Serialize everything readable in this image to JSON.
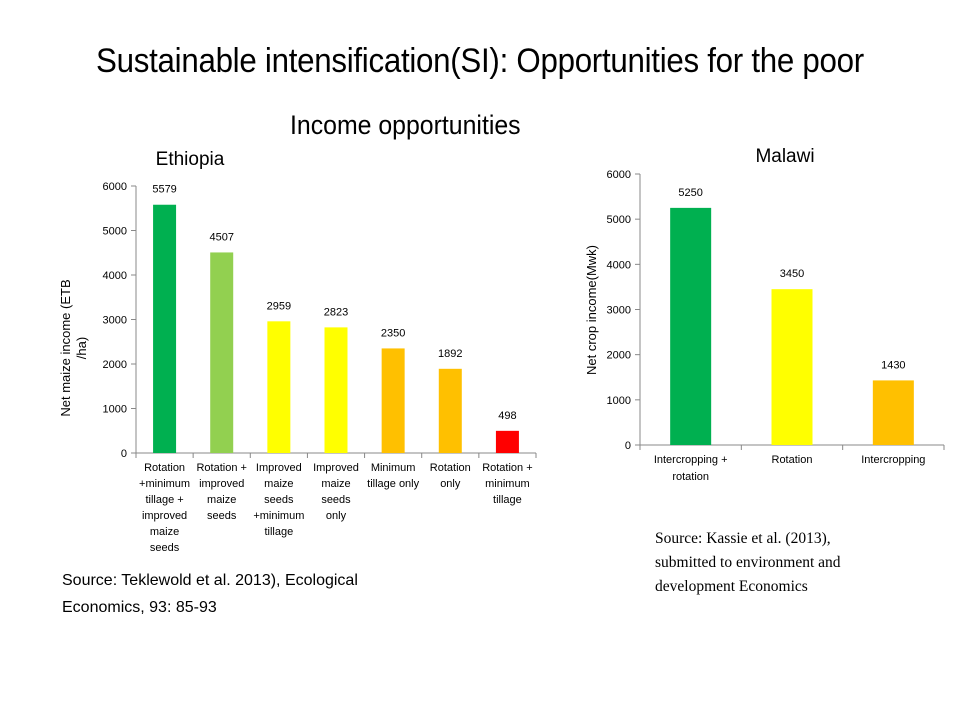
{
  "slide": {
    "title": "Sustainable intensification(SI): Opportunities for the poor",
    "subtitle": "Income opportunities",
    "source_left_line1": "Source: Teklewold et al. 2013), Ecological",
    "source_left_line2": "Economics, 93: 85-93",
    "source_right_line1": "Source:  Kassie et al. (2013),",
    "source_right_line2": "submitted to environment and",
    "source_right_line3": "development Economics"
  },
  "chart_data": [
    {
      "type": "bar",
      "title": "Ethiopia",
      "ylabel": "Net maize income (ETB /ha)",
      "ylim": [
        0,
        6000
      ],
      "yticks": [
        0,
        1000,
        2000,
        3000,
        4000,
        5000,
        6000
      ],
      "grid": false,
      "categories": [
        "Rotation +minimum tillage + improved maize seeds",
        "Rotation + improved maize seeds",
        "Improved maize seeds +minimum tillage",
        "Improved maize seeds only",
        "Minimum tillage only",
        "Rotation only",
        "Rotation + minimum tillage"
      ],
      "category_lines": [
        [
          "Rotation",
          "+minimum",
          "tillage +",
          "improved",
          "maize",
          "seeds"
        ],
        [
          "Rotation +",
          "improved",
          "maize",
          "seeds"
        ],
        [
          "Improved",
          "maize",
          "seeds",
          "+minimum",
          "tillage"
        ],
        [
          "Improved",
          "maize",
          "seeds",
          "only"
        ],
        [
          "Minimum",
          "tillage only"
        ],
        [
          "Rotation",
          "only"
        ],
        [
          "Rotation +",
          "minimum",
          "tillage"
        ]
      ],
      "values": [
        5579,
        4507,
        2959,
        2823,
        2350,
        1892,
        498
      ],
      "colors": [
        "#00B050",
        "#92D050",
        "#FFFF00",
        "#FFFF00",
        "#FFC000",
        "#FFC000",
        "#FF0000"
      ]
    },
    {
      "type": "bar",
      "title": "Malawi",
      "ylabel": "Net crop income(Mwk)",
      "ylim": [
        0,
        6000
      ],
      "yticks": [
        0,
        1000,
        2000,
        3000,
        4000,
        5000,
        6000
      ],
      "grid": false,
      "categories": [
        "Intercropping + rotation",
        "Rotation",
        "Intercropping"
      ],
      "category_lines": [
        [
          "Intercropping +",
          "rotation"
        ],
        [
          "Rotation"
        ],
        [
          "Intercropping"
        ]
      ],
      "values": [
        5250,
        3450,
        1430
      ],
      "colors": [
        "#00B050",
        "#FFFF00",
        "#FFC000"
      ]
    }
  ]
}
